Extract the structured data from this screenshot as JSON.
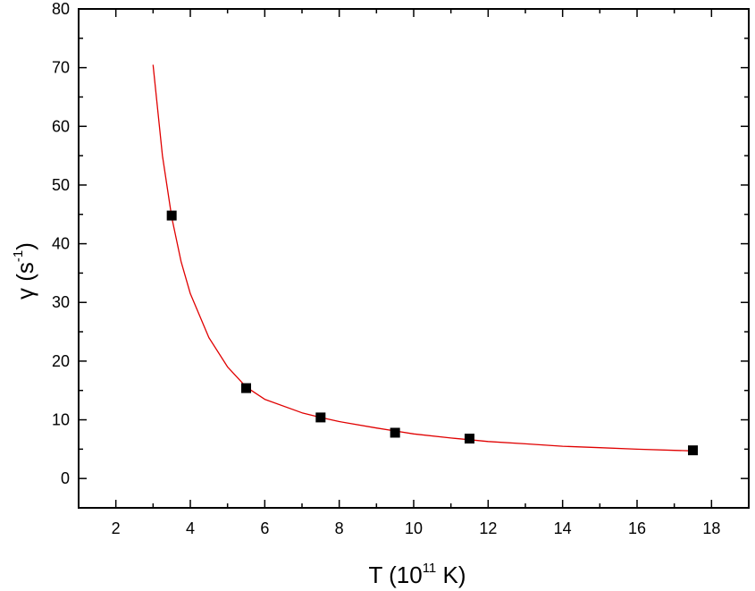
{
  "chart_data": {
    "type": "scatter",
    "xlabel": {
      "prefix": "T (10",
      "sup": "11",
      "suffix": " K)"
    },
    "ylabel": {
      "prefix": "γ (s",
      "sup": "-1",
      "suffix": ")"
    },
    "xlim": [
      1,
      19
    ],
    "ylim": [
      -5,
      80
    ],
    "xticks": [
      2,
      4,
      6,
      8,
      10,
      12,
      14,
      16,
      18
    ],
    "yticks": [
      0,
      10,
      20,
      30,
      40,
      50,
      60,
      70,
      80
    ],
    "grid": false,
    "series": [
      {
        "kind": "points",
        "marker": "square",
        "color": "#000000",
        "x": [
          3.5,
          5.5,
          7.5,
          9.5,
          11.5,
          17.5
        ],
        "y": [
          44.8,
          15.4,
          10.4,
          7.8,
          6.8,
          4.8
        ]
      },
      {
        "kind": "line",
        "color": "#e00000",
        "x": [
          3.0,
          3.25,
          3.5,
          3.75,
          4.0,
          4.5,
          5.0,
          5.5,
          6.0,
          7.0,
          7.5,
          8.0,
          9.0,
          9.5,
          10.0,
          11.0,
          11.5,
          12.0,
          13.0,
          14.0,
          15.0,
          16.0,
          17.0,
          17.5
        ],
        "y": [
          70.5,
          55.0,
          44.5,
          37.0,
          31.5,
          24.0,
          19.0,
          15.6,
          13.5,
          11.2,
          10.4,
          9.7,
          8.6,
          8.1,
          7.6,
          6.9,
          6.6,
          6.3,
          5.9,
          5.5,
          5.25,
          5.0,
          4.8,
          4.7
        ]
      }
    ]
  }
}
